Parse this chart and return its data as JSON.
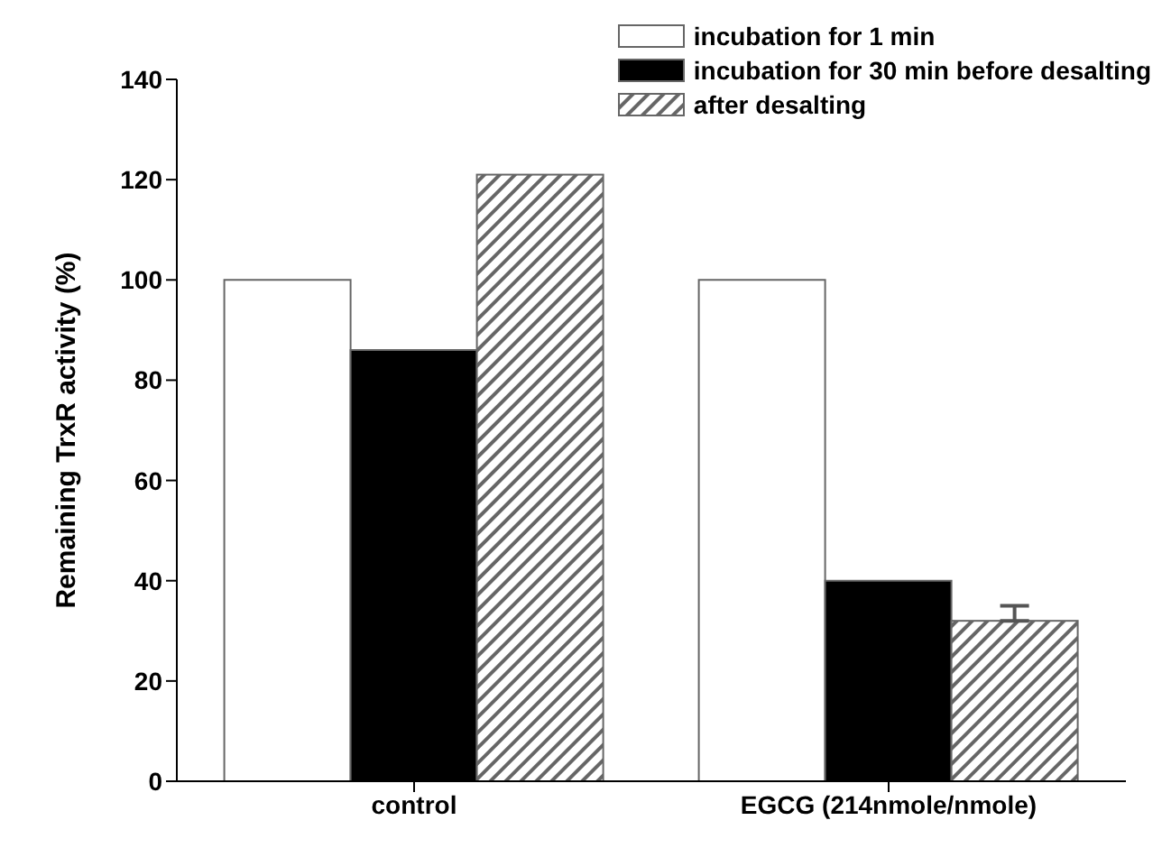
{
  "chart_data": {
    "type": "bar",
    "ylabel": "Remaining TrxR activity (%)",
    "categories": [
      "control",
      "EGCG (214nmole/nmole)"
    ],
    "series": [
      {
        "name": "incubation for 1 min",
        "color": "#ffffff",
        "values": [
          100,
          100
        ]
      },
      {
        "name": "incubation for 30 min before desalting",
        "color": "#000000",
        "values": [
          86,
          40
        ]
      },
      {
        "name": "after desalting",
        "color": "#666666",
        "values": [
          121,
          32
        ],
        "errors": [
          null,
          [
            32,
            35
          ]
        ]
      }
    ],
    "ylim": [
      0,
      140
    ],
    "yticks": [
      0,
      20,
      40,
      60,
      80,
      100,
      120,
      140
    ],
    "grid": false,
    "legend": "top right"
  }
}
